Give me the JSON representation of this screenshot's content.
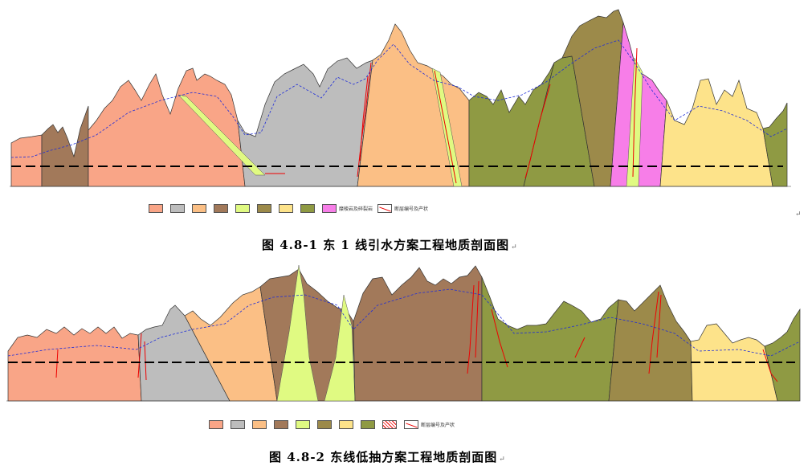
{
  "figure1": {
    "caption": "图 4.8-1   东 1 线引水方案工程地质剖面图",
    "legend": [
      {
        "label": "",
        "color": "#f9a587"
      },
      {
        "label": "",
        "color": "#bdbdbd"
      },
      {
        "label": "",
        "color": "#fbbf85"
      },
      {
        "label": "",
        "color": "#a2795a"
      },
      {
        "label": "",
        "color": "#e0fa82"
      },
      {
        "label": "",
        "color": "#9c8a4a"
      },
      {
        "label": "",
        "color": "#fde38a"
      },
      {
        "label": "",
        "color": "#8f9a43"
      },
      {
        "label": "糜棱岩及碎裂岩",
        "color": "#f77ee8"
      },
      {
        "label": "断层编号及产状",
        "color": "fault"
      }
    ]
  },
  "figure2": {
    "caption": "图 4.8-2   东线低抽方案工程地质剖面图",
    "legend": [
      {
        "label": "",
        "color": "#f9a587"
      },
      {
        "label": "",
        "color": "#bdbdbd"
      },
      {
        "label": "",
        "color": "#fbbf85"
      },
      {
        "label": "",
        "color": "#a2795a"
      },
      {
        "label": "",
        "color": "#e0fa82"
      },
      {
        "label": "",
        "color": "#9c8a4a"
      },
      {
        "label": "",
        "color": "#fde38a"
      },
      {
        "label": "",
        "color": "#8f9a43"
      },
      {
        "label": "",
        "color": "breccia"
      },
      {
        "label": "断层编号及产状",
        "color": "fault"
      }
    ]
  },
  "paragraph_mark": "↵"
}
